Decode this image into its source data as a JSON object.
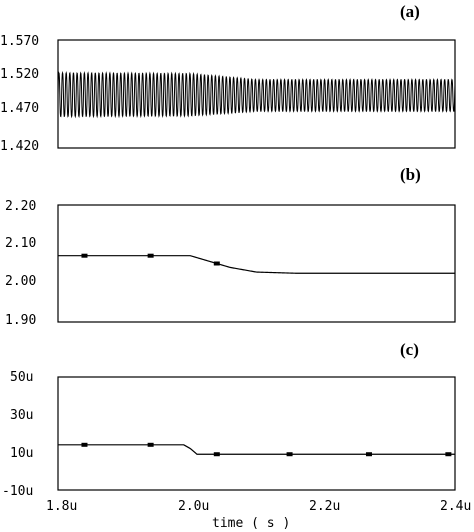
{
  "chart_data": [
    {
      "type": "line",
      "panel_label": "(a)",
      "ylim": [
        1.42,
        1.57
      ],
      "yticks": [
        "1.570",
        "1.520",
        "1.470",
        "1.420"
      ],
      "ytick_values": [
        1.57,
        1.52,
        1.47,
        1.42
      ],
      "xlim": [
        1.8,
        2.4
      ],
      "grid": false,
      "series": [
        {
          "x": [
            1.8,
            2.0,
            2.1,
            2.4
          ],
          "y": [
            1.494,
            1.494,
            1.493,
            1.493
          ],
          "oscillation_amplitude": [
            0.033,
            0.032,
            0.024,
            0.024
          ],
          "oscillation_period": 0.0055
        }
      ]
    },
    {
      "type": "line",
      "panel_label": "(b)",
      "ylim": [
        1.9,
        2.2
      ],
      "yticks": [
        "2.20",
        "2.10",
        "2.00",
        "1.90"
      ],
      "ytick_values": [
        2.2,
        2.1,
        2.0,
        1.9
      ],
      "xlim": [
        1.8,
        2.4
      ],
      "grid": false,
      "series": [
        {
          "x": [
            1.8,
            1.84,
            1.94,
            2.0,
            2.03,
            2.06,
            2.1,
            2.16,
            2.2,
            2.4
          ],
          "y": [
            2.07,
            2.07,
            2.07,
            2.07,
            2.055,
            2.04,
            2.028,
            2.025,
            2.025,
            2.025
          ]
        }
      ]
    },
    {
      "type": "line",
      "panel_label": "(c)",
      "ylim": [
        -10,
        50
      ],
      "yticks": [
        "50u",
        "30u",
        "10u",
        "-10u"
      ],
      "ytick_values": [
        50,
        30,
        10,
        -10
      ],
      "xlim": [
        1.8,
        2.4
      ],
      "xticks": [
        "1.8u",
        "2.0u",
        "2.2u",
        "2.4u"
      ],
      "xtick_values": [
        1.8,
        2.0,
        2.2,
        2.4
      ],
      "xlabel": "time ( s )",
      "grid": false,
      "series": [
        {
          "x": [
            1.8,
            1.84,
            1.94,
            1.99,
            2.0,
            2.01,
            2.4
          ],
          "y": [
            14,
            14,
            14,
            14,
            12,
            9,
            9
          ]
        }
      ]
    }
  ]
}
